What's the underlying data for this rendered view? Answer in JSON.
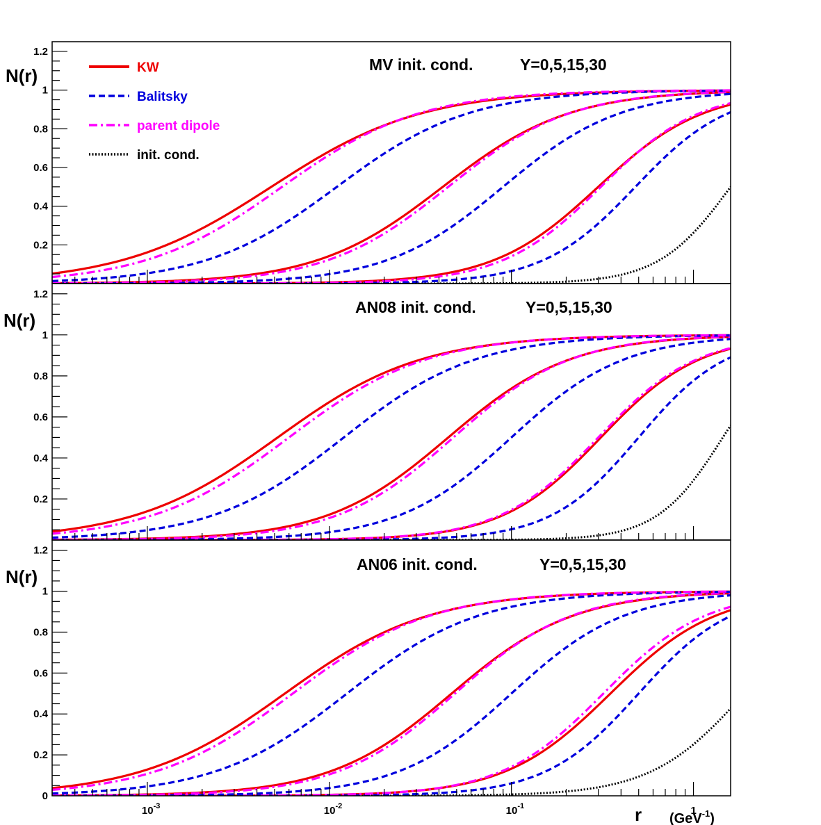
{
  "chart_data": {
    "type": "line",
    "x_scale": "log",
    "x_range": [
      0.0003,
      1.6
    ],
    "y_range": [
      0,
      1.25
    ],
    "xlabel": "r",
    "xunit_base": "(GeV",
    "xunit_exp": "-1",
    "xunit_close": ")",
    "x_ticks": [
      {
        "value": 0.001,
        "base": "10",
        "exp": "-3"
      },
      {
        "value": 0.01,
        "base": "10",
        "exp": "-2"
      },
      {
        "value": 0.1,
        "base": "10",
        "exp": "-1"
      },
      {
        "value": 1,
        "base": "1",
        "exp": ""
      }
    ],
    "legend": [
      {
        "label": "KW",
        "color": "#ee0000",
        "style": "solid"
      },
      {
        "label": "Balitsky",
        "color": "#0000dd",
        "style": "dashed"
      },
      {
        "label": "parent dipole",
        "color": "#ff00ff",
        "style": "dashdot"
      },
      {
        "label": "init. cond.",
        "color": "#000000",
        "style": "dotted"
      }
    ],
    "panels": [
      {
        "title": "MV init. cond.",
        "rapidities": "Y=0,5,15,30",
        "ylabel": "N(r)",
        "y_ticks": [
          {
            "value": 0.2,
            "label": "0.2"
          },
          {
            "value": 0.4,
            "label": "0.4"
          },
          {
            "value": 0.6,
            "label": "0.6"
          },
          {
            "value": 0.8,
            "label": "0.8"
          },
          {
            "value": 1.0,
            "label": "1"
          },
          {
            "value": 1.2,
            "label": "1.2"
          }
        ],
        "series": [
          {
            "name": "init. cond.",
            "Y": 0,
            "style": "dotted",
            "r_half": 1.6,
            "slope": 2.2
          },
          {
            "name": "KW",
            "Y": 5,
            "style": "solid",
            "r_half": 0.3,
            "slope": 1.5
          },
          {
            "name": "Balitsky",
            "Y": 5,
            "style": "dashed",
            "r_half": 0.48,
            "slope": 1.7
          },
          {
            "name": "parent dipole",
            "Y": 5,
            "style": "dashdot",
            "r_half": 0.31,
            "slope": 1.6
          },
          {
            "name": "KW",
            "Y": 15,
            "style": "solid",
            "r_half": 0.042,
            "slope": 1.25
          },
          {
            "name": "Balitsky",
            "Y": 15,
            "style": "dashed",
            "r_half": 0.09,
            "slope": 1.35
          },
          {
            "name": "parent dipole",
            "Y": 15,
            "style": "dashdot",
            "r_half": 0.045,
            "slope": 1.3
          },
          {
            "name": "KW",
            "Y": 30,
            "style": "solid",
            "r_half": 0.0048,
            "slope": 1.05
          },
          {
            "name": "Balitsky",
            "Y": 30,
            "style": "dashed",
            "r_half": 0.011,
            "slope": 1.2
          },
          {
            "name": "parent dipole",
            "Y": 30,
            "style": "dashdot",
            "r_half": 0.0055,
            "slope": 1.15
          }
        ]
      },
      {
        "title": "AN08 init. cond.",
        "rapidities": "Y=0,5,15,30",
        "ylabel": "N(r)",
        "y_ticks": [
          {
            "value": 0.2,
            "label": "0.2"
          },
          {
            "value": 0.4,
            "label": "0.4"
          },
          {
            "value": 0.6,
            "label": "0.6"
          },
          {
            "value": 0.8,
            "label": "0.8"
          },
          {
            "value": 1.0,
            "label": "1"
          },
          {
            "value": 1.2,
            "label": "1.2"
          }
        ],
        "series": [
          {
            "name": "init. cond.",
            "Y": 0,
            "style": "dotted",
            "r_half": 1.45,
            "slope": 2.4
          },
          {
            "name": "KW",
            "Y": 5,
            "style": "solid",
            "r_half": 0.31,
            "slope": 1.6
          },
          {
            "name": "Balitsky",
            "Y": 5,
            "style": "dashed",
            "r_half": 0.5,
            "slope": 1.8
          },
          {
            "name": "parent dipole",
            "Y": 5,
            "style": "dashdot",
            "r_half": 0.3,
            "slope": 1.6
          },
          {
            "name": "KW",
            "Y": 15,
            "style": "solid",
            "r_half": 0.045,
            "slope": 1.3
          },
          {
            "name": "Balitsky",
            "Y": 15,
            "style": "dashed",
            "r_half": 0.1,
            "slope": 1.4
          },
          {
            "name": "parent dipole",
            "Y": 15,
            "style": "dashdot",
            "r_half": 0.048,
            "slope": 1.35
          },
          {
            "name": "KW",
            "Y": 30,
            "style": "solid",
            "r_half": 0.0052,
            "slope": 1.1
          },
          {
            "name": "Balitsky",
            "Y": 30,
            "style": "dashed",
            "r_half": 0.012,
            "slope": 1.2
          },
          {
            "name": "parent dipole",
            "Y": 30,
            "style": "dashdot",
            "r_half": 0.006,
            "slope": 1.15
          }
        ]
      },
      {
        "title": "AN06 init. cond.",
        "rapidities": "Y=0,5,15,30",
        "ylabel": "N(r)",
        "y_ticks": [
          {
            "value": 0,
            "label": "0"
          },
          {
            "value": 0.2,
            "label": "0.2"
          },
          {
            "value": 0.4,
            "label": "0.4"
          },
          {
            "value": 0.6,
            "label": "0.6"
          },
          {
            "value": 0.8,
            "label": "0.8"
          },
          {
            "value": 1.0,
            "label": "1"
          },
          {
            "value": 1.2,
            "label": "1.2"
          }
        ],
        "series": [
          {
            "name": "init. cond.",
            "Y": 0,
            "style": "dotted",
            "r_half": 1.9,
            "slope": 1.7
          },
          {
            "name": "KW",
            "Y": 5,
            "style": "solid",
            "r_half": 0.35,
            "slope": 1.5
          },
          {
            "name": "Balitsky",
            "Y": 5,
            "style": "dashed",
            "r_half": 0.5,
            "slope": 1.7
          },
          {
            "name": "parent dipole",
            "Y": 5,
            "style": "dashdot",
            "r_half": 0.32,
            "slope": 1.55
          },
          {
            "name": "KW",
            "Y": 15,
            "style": "solid",
            "r_half": 0.047,
            "slope": 1.3
          },
          {
            "name": "Balitsky",
            "Y": 15,
            "style": "dashed",
            "r_half": 0.1,
            "slope": 1.4
          },
          {
            "name": "parent dipole",
            "Y": 15,
            "style": "dashdot",
            "r_half": 0.049,
            "slope": 1.35
          },
          {
            "name": "KW",
            "Y": 30,
            "style": "solid",
            "r_half": 0.0057,
            "slope": 1.1
          },
          {
            "name": "Balitsky",
            "Y": 30,
            "style": "dashed",
            "r_half": 0.0125,
            "slope": 1.2
          },
          {
            "name": "parent dipole",
            "Y": 30,
            "style": "dashdot",
            "r_half": 0.0063,
            "slope": 1.15
          }
        ]
      }
    ]
  }
}
